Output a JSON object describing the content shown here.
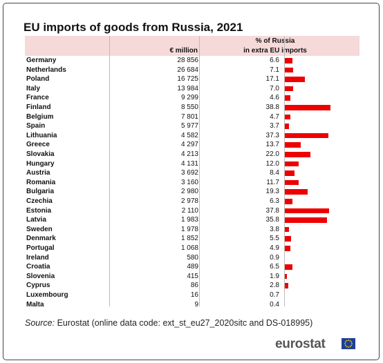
{
  "title": "EU imports of goods from Russia, 2021",
  "header": {
    "eur_label": "€ million",
    "pct_label_line1": "% of Russia",
    "pct_label_line2": "in extra EU imports"
  },
  "source_label": "Source:",
  "source_text": "Eurostat (online data code: ext_st_eu27_2020sitc and DS-018995)",
  "logo_text": "eurostat",
  "colors": {
    "bar": "#ee0000",
    "header_bg": "#f6d9d9"
  },
  "chart_data": {
    "type": "table",
    "title": "EU imports of goods from Russia, 2021",
    "columns": [
      "€ million",
      "% of Russia in extra EU imports"
    ],
    "bar_column": "% of Russia in extra EU imports",
    "rows": [
      {
        "country": "Germany",
        "eur": "28 856",
        "pct": "6.6",
        "pct_value": 6.6
      },
      {
        "country": "Netherlands",
        "eur": "26 684",
        "pct": "7.1",
        "pct_value": 7.1
      },
      {
        "country": "Poland",
        "eur": "16 725",
        "pct": "17.1",
        "pct_value": 17.1
      },
      {
        "country": "Italy",
        "eur": "13 984",
        "pct": "7.0",
        "pct_value": 7.0
      },
      {
        "country": "France",
        "eur": "9 299",
        "pct": "4.6",
        "pct_value": 4.6
      },
      {
        "country": "Finland",
        "eur": "8 550",
        "pct": "38.8",
        "pct_value": 38.8
      },
      {
        "country": "Belgium",
        "eur": "7 801",
        "pct": "4.7",
        "pct_value": 4.7
      },
      {
        "country": "Spain",
        "eur": "5 977",
        "pct": "3.7",
        "pct_value": 3.7
      },
      {
        "country": "Lithuania",
        "eur": "4 582",
        "pct": "37.3",
        "pct_value": 37.3
      },
      {
        "country": "Greece",
        "eur": "4 297",
        "pct": "13.7",
        "pct_value": 13.7
      },
      {
        "country": "Slovakia",
        "eur": "4 213",
        "pct": "22.0",
        "pct_value": 22.0
      },
      {
        "country": "Hungary",
        "eur": "4 131",
        "pct": "12.0",
        "pct_value": 12.0
      },
      {
        "country": "Austria",
        "eur": "3 692",
        "pct": "8.4",
        "pct_value": 8.4
      },
      {
        "country": "Romania",
        "eur": "3 160",
        "pct": "11.7",
        "pct_value": 11.7
      },
      {
        "country": "Bulgaria",
        "eur": "2 980",
        "pct": "19.3",
        "pct_value": 19.3
      },
      {
        "country": "Czechia",
        "eur": "2 978",
        "pct": "6.3",
        "pct_value": 6.3
      },
      {
        "country": "Estonia",
        "eur": "2 110",
        "pct": "37.8",
        "pct_value": 37.8
      },
      {
        "country": "Latvia",
        "eur": "1 983",
        "pct": "35.8",
        "pct_value": 35.8
      },
      {
        "country": "Sweden",
        "eur": "1 978",
        "pct": "3.8",
        "pct_value": 3.8
      },
      {
        "country": "Denmark",
        "eur": "1 852",
        "pct": "5.5",
        "pct_value": 5.5
      },
      {
        "country": "Portugal",
        "eur": "1 068",
        "pct": "4.9",
        "pct_value": 4.9
      },
      {
        "country": "Ireland",
        "eur": "580",
        "pct": "0.9",
        "pct_value": 0.9
      },
      {
        "country": "Croatia",
        "eur": "489",
        "pct": "6.5",
        "pct_value": 6.5
      },
      {
        "country": "Slovenia",
        "eur": "415",
        "pct": "1.9",
        "pct_value": 1.9
      },
      {
        "country": "Cyprus",
        "eur": "86",
        "pct": "2.8",
        "pct_value": 2.8
      },
      {
        "country": "Luxembourg",
        "eur": "16",
        "pct": "0.7",
        "pct_value": 0.7
      },
      {
        "country": "Malta",
        "eur": "9",
        "pct": "0.4",
        "pct_value": 0.4
      }
    ]
  }
}
